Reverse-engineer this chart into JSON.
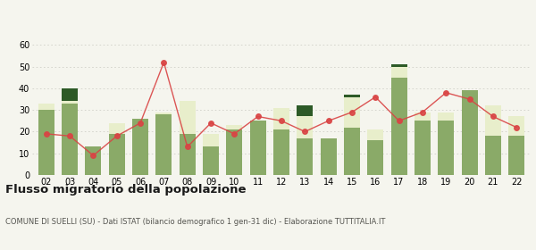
{
  "years": [
    "02",
    "03",
    "04",
    "05",
    "06",
    "07",
    "08",
    "09",
    "10",
    "11",
    "12",
    "13",
    "14",
    "15",
    "16",
    "17",
    "18",
    "19",
    "20",
    "21",
    "22"
  ],
  "iscritti_comuni": [
    30,
    33,
    13,
    19,
    26,
    28,
    19,
    13,
    21,
    25,
    21,
    17,
    17,
    22,
    16,
    45,
    25,
    25,
    39,
    18,
    18
  ],
  "iscritti_estero": [
    3,
    1,
    0,
    5,
    0,
    1,
    15,
    6,
    2,
    0,
    10,
    10,
    0,
    14,
    5,
    5,
    4,
    4,
    0,
    14,
    9
  ],
  "iscritti_altri": [
    0,
    6,
    0,
    0,
    0,
    0,
    0,
    0,
    0,
    0,
    0,
    5,
    0,
    1,
    0,
    1,
    0,
    0,
    0,
    0,
    0
  ],
  "cancellati": [
    19,
    18,
    9,
    18,
    24,
    52,
    13,
    24,
    19,
    27,
    25,
    20,
    25,
    29,
    36,
    25,
    29,
    38,
    35,
    27,
    22
  ],
  "color_comuni": "#8aaa68",
  "color_estero": "#e8eecb",
  "color_altri": "#2d5a27",
  "color_cancellati": "#d94444",
  "bg_color": "#f5f5ee",
  "grid_color": "#d0d0c8",
  "ylim": [
    0,
    60
  ],
  "yticks": [
    0,
    10,
    20,
    30,
    40,
    50,
    60
  ],
  "title": "Flusso migratorio della popolazione",
  "subtitle": "COMUNE DI SUELLI (SU) - Dati ISTAT (bilancio demografico 1 gen-31 dic) - Elaborazione TUTTITALIA.IT"
}
